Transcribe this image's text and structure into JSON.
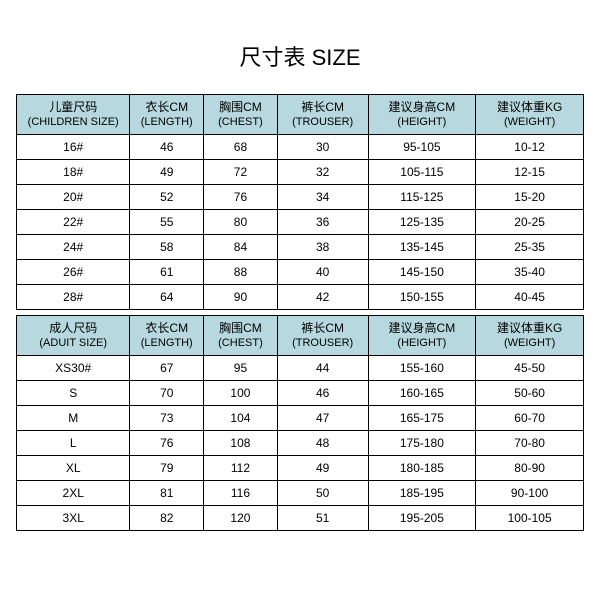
{
  "title": "尺寸表 SIZE",
  "header_bg": "#b6d8de",
  "tables": [
    {
      "columns": [
        {
          "zh": "儿童尺码",
          "en": "(CHILDREN SIZE)"
        },
        {
          "zh": "衣长CM",
          "en": "(LENGTH)"
        },
        {
          "zh": "胸围CM",
          "en": "(CHEST)"
        },
        {
          "zh": "裤长CM",
          "en": "(TROUSER)"
        },
        {
          "zh": "建议身高CM",
          "en": "(HEIGHT)"
        },
        {
          "zh": "建议体重KG",
          "en": "(WEIGHT)"
        }
      ],
      "rows": [
        [
          "16#",
          "46",
          "68",
          "30",
          "95-105",
          "10-12"
        ],
        [
          "18#",
          "49",
          "72",
          "32",
          "105-115",
          "12-15"
        ],
        [
          "20#",
          "52",
          "76",
          "34",
          "115-125",
          "15-20"
        ],
        [
          "22#",
          "55",
          "80",
          "36",
          "125-135",
          "20-25"
        ],
        [
          "24#",
          "58",
          "84",
          "38",
          "135-145",
          "25-35"
        ],
        [
          "26#",
          "61",
          "88",
          "40",
          "145-150",
          "35-40"
        ],
        [
          "28#",
          "64",
          "90",
          "42",
          "150-155",
          "40-45"
        ]
      ]
    },
    {
      "columns": [
        {
          "zh": "成人尺码",
          "en": "(ADUIT SIZE)"
        },
        {
          "zh": "衣长CM",
          "en": "(LENGTH)"
        },
        {
          "zh": "胸围CM",
          "en": "(CHEST)"
        },
        {
          "zh": "裤长CM",
          "en": "(TROUSER)"
        },
        {
          "zh": "建议身高CM",
          "en": "(HEIGHT)"
        },
        {
          "zh": "建议体重KG",
          "en": "(WEIGHT)"
        }
      ],
      "rows": [
        [
          "XS30#",
          "67",
          "95",
          "44",
          "155-160",
          "45-50"
        ],
        [
          "S",
          "70",
          "100",
          "46",
          "160-165",
          "50-60"
        ],
        [
          "M",
          "73",
          "104",
          "47",
          "165-175",
          "60-70"
        ],
        [
          "L",
          "76",
          "108",
          "48",
          "175-180",
          "70-80"
        ],
        [
          "XL",
          "79",
          "112",
          "49",
          "180-185",
          "80-90"
        ],
        [
          "2XL",
          "81",
          "116",
          "50",
          "185-195",
          "90-100"
        ],
        [
          "3XL",
          "82",
          "120",
          "51",
          "195-205",
          "100-105"
        ]
      ]
    }
  ]
}
